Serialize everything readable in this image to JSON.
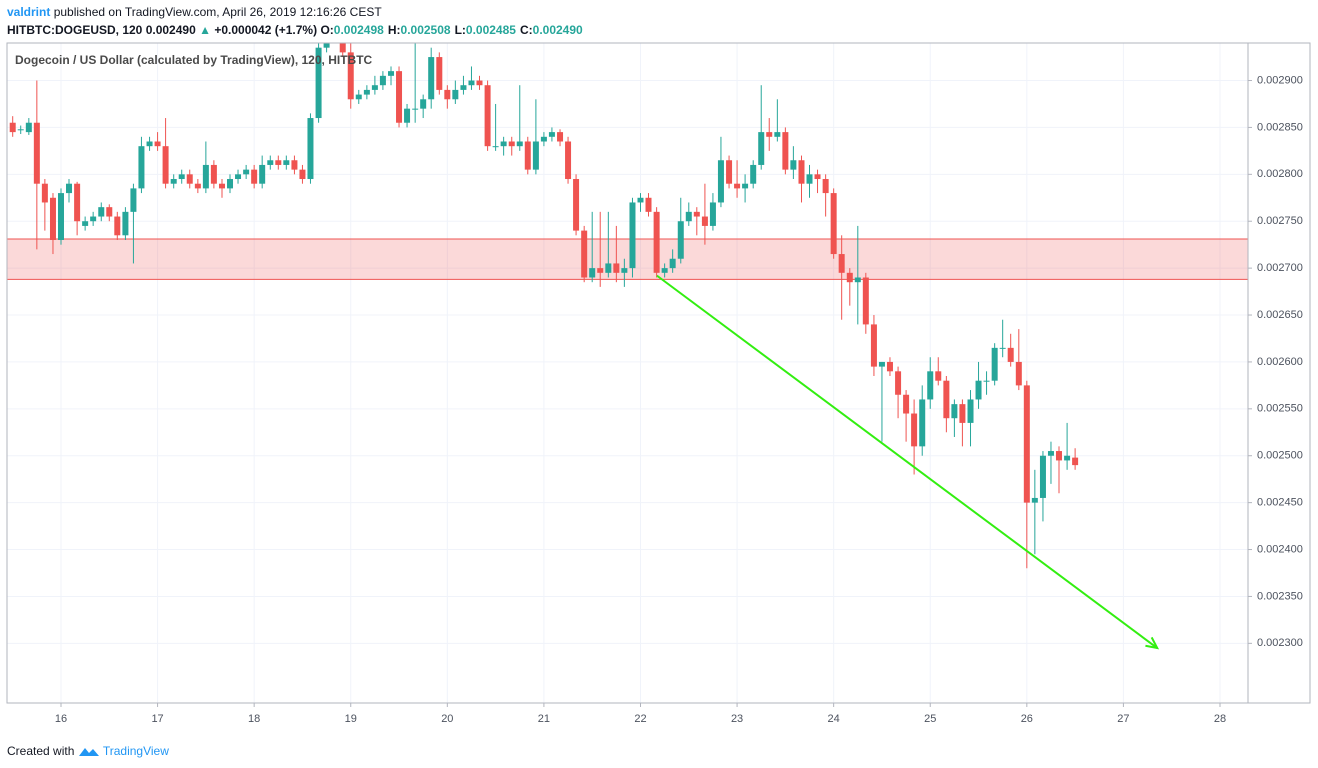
{
  "header": {
    "author": "valdrint",
    "published": "published on TradingView.com, April 26, 2019 12:16:26 CEST",
    "symbol": "HITBTC:DOGEUSD, 120",
    "last": "0.002490",
    "change": "+0.000042 (+1.7%)",
    "ohlc": [
      {
        "label": "O:",
        "value": "0.002498"
      },
      {
        "label": "H:",
        "value": "0.002508"
      },
      {
        "label": "L:",
        "value": "0.002485"
      },
      {
        "label": "C:",
        "value": "0.002490"
      }
    ]
  },
  "footer": {
    "prefix": "Created with",
    "brand": "TradingView"
  },
  "chart_data": {
    "type": "candlestick",
    "title": "Dogecoin / US Dollar (calculated by TradingView), 120, HITBTC",
    "up_color": "#26a69a",
    "down_color": "#ef5350",
    "grid": true,
    "xlim": [
      15.441,
      28.29
    ],
    "xticks": [
      16,
      17,
      18,
      19,
      20,
      21,
      22,
      23,
      24,
      25,
      26,
      27,
      28
    ],
    "ylim": [
      0.0022364,
      0.00294
    ],
    "yticks": [
      {
        "value": 0.0023,
        "label": "0.002300"
      },
      {
        "value": 0.00235,
        "label": "0.002350"
      },
      {
        "value": 0.0024,
        "label": "0.002400"
      },
      {
        "value": 0.00245,
        "label": "0.002450"
      },
      {
        "value": 0.0025,
        "label": "0.002500"
      },
      {
        "value": 0.00255,
        "label": "0.002550"
      },
      {
        "value": 0.0026,
        "label": "0.002600"
      },
      {
        "value": 0.00265,
        "label": "0.002650"
      },
      {
        "value": 0.0027,
        "label": "0.002700"
      },
      {
        "value": 0.00275,
        "label": "0.002750"
      },
      {
        "value": 0.0028,
        "label": "0.002800"
      },
      {
        "value": 0.00285,
        "label": "0.002850"
      },
      {
        "value": 0.0029,
        "label": "0.002900"
      }
    ],
    "zone": {
      "color": "#ef5350",
      "y": [
        0.002688,
        0.002731
      ]
    },
    "arrow": {
      "color": "#33ee11",
      "x": [
        22.17,
        27.35
      ],
      "y": [
        0.002692,
        0.002295
      ]
    },
    "x": [
      15.5,
      15.583,
      15.667,
      15.75,
      15.833,
      15.917,
      16,
      16.083,
      16.167,
      16.25,
      16.333,
      16.417,
      16.5,
      16.583,
      16.667,
      16.75,
      16.833,
      16.917,
      17,
      17.083,
      17.167,
      17.25,
      17.333,
      17.417,
      17.5,
      17.583,
      17.667,
      17.75,
      17.833,
      17.917,
      18,
      18.083,
      18.167,
      18.25,
      18.333,
      18.417,
      18.5,
      18.583,
      18.667,
      18.75,
      18.833,
      18.917,
      19,
      19.083,
      19.167,
      19.25,
      19.333,
      19.417,
      19.5,
      19.583,
      19.667,
      19.75,
      19.833,
      19.917,
      20,
      20.083,
      20.167,
      20.25,
      20.333,
      20.417,
      20.5,
      20.583,
      20.667,
      20.75,
      20.833,
      20.917,
      21,
      21.083,
      21.167,
      21.25,
      21.333,
      21.417,
      21.5,
      21.583,
      21.667,
      21.75,
      21.833,
      21.917,
      22,
      22.083,
      22.167,
      22.25,
      22.333,
      22.417,
      22.5,
      22.583,
      22.667,
      22.75,
      22.833,
      22.917,
      23,
      23.083,
      23.167,
      23.25,
      23.333,
      23.417,
      23.5,
      23.583,
      23.667,
      23.75,
      23.833,
      23.917,
      24,
      24.083,
      24.167,
      24.25,
      24.333,
      24.417,
      24.5,
      24.583,
      24.667,
      24.75,
      24.833,
      24.917,
      25,
      25.083,
      25.167,
      25.25,
      25.333,
      25.417,
      25.5,
      25.583,
      25.667,
      25.75,
      25.833,
      25.917,
      26,
      26.083,
      26.167,
      26.25,
      26.333,
      26.417,
      26.5
    ],
    "open": [
      0.002855,
      0.002848,
      0.002845,
      0.002855,
      0.00279,
      0.002775,
      0.00273,
      0.00278,
      0.00279,
      0.002745,
      0.00275,
      0.002755,
      0.002765,
      0.002755,
      0.002735,
      0.00276,
      0.002785,
      0.00283,
      0.002835,
      0.00283,
      0.00279,
      0.002795,
      0.0028,
      0.00279,
      0.002785,
      0.00281,
      0.00279,
      0.002785,
      0.002795,
      0.0028,
      0.002805,
      0.00279,
      0.00281,
      0.002815,
      0.00281,
      0.002815,
      0.002805,
      0.002795,
      0.00286,
      0.002935,
      0.002975,
      0.00296,
      0.00293,
      0.00288,
      0.002885,
      0.00289,
      0.002895,
      0.002905,
      0.00291,
      0.002855,
      0.00287,
      0.00287,
      0.00288,
      0.002925,
      0.00289,
      0.00288,
      0.00289,
      0.002895,
      0.0029,
      0.002895,
      0.00283,
      0.00283,
      0.002835,
      0.00283,
      0.002835,
      0.002805,
      0.002835,
      0.00284,
      0.002845,
      0.002835,
      0.002795,
      0.00274,
      0.00269,
      0.0027,
      0.002695,
      0.002705,
      0.002695,
      0.0027,
      0.00277,
      0.002775,
      0.00276,
      0.002695,
      0.0027,
      0.00271,
      0.00275,
      0.00276,
      0.002755,
      0.002745,
      0.00277,
      0.002815,
      0.00279,
      0.002785,
      0.00279,
      0.00281,
      0.002845,
      0.00284,
      0.002845,
      0.002805,
      0.002815,
      0.00279,
      0.0028,
      0.002795,
      0.00278,
      0.002715,
      0.002695,
      0.002685,
      0.00269,
      0.00264,
      0.002595,
      0.0026,
      0.00259,
      0.002565,
      0.002545,
      0.00251,
      0.00256,
      0.00259,
      0.00258,
      0.00254,
      0.002555,
      0.002535,
      0.00256,
      0.00258,
      0.00258,
      0.002615,
      0.002615,
      0.0026,
      0.002575,
      0.00245,
      0.002455,
      0.0025,
      0.002505,
      0.002495,
      0.002498
    ],
    "high": [
      0.002862,
      0.002852,
      0.00286,
      0.0029,
      0.002795,
      0.00278,
      0.002785,
      0.002795,
      0.002792,
      0.002755,
      0.00276,
      0.00277,
      0.002768,
      0.00276,
      0.002765,
      0.00279,
      0.00284,
      0.00284,
      0.002845,
      0.00286,
      0.0028,
      0.002805,
      0.002805,
      0.002795,
      0.002835,
      0.002815,
      0.002795,
      0.0028,
      0.002805,
      0.00281,
      0.00281,
      0.00282,
      0.00282,
      0.00282,
      0.00282,
      0.00282,
      0.00281,
      0.002865,
      0.00295,
      0.00299,
      0.003,
      0.00297,
      0.002945,
      0.00289,
      0.002895,
      0.002905,
      0.00291,
      0.002915,
      0.002915,
      0.002875,
      0.00294,
      0.002885,
      0.002935,
      0.00293,
      0.002895,
      0.0029,
      0.002905,
      0.002915,
      0.002905,
      0.0029,
      0.002875,
      0.00284,
      0.00284,
      0.002895,
      0.00284,
      0.00288,
      0.002845,
      0.00285,
      0.002848,
      0.00284,
      0.0028,
      0.002745,
      0.00276,
      0.00276,
      0.00276,
      0.002745,
      0.00271,
      0.002775,
      0.00278,
      0.00278,
      0.002765,
      0.002705,
      0.00272,
      0.002775,
      0.00277,
      0.002765,
      0.00279,
      0.00278,
      0.00284,
      0.00282,
      0.002815,
      0.0028,
      0.002815,
      0.002895,
      0.00286,
      0.00288,
      0.00285,
      0.00283,
      0.00282,
      0.00281,
      0.002805,
      0.0028,
      0.002785,
      0.002735,
      0.0027,
      0.002745,
      0.002695,
      0.00265,
      0.0026,
      0.002605,
      0.002595,
      0.00257,
      0.00256,
      0.002575,
      0.002605,
      0.002605,
      0.002585,
      0.00256,
      0.00256,
      0.00257,
      0.0026,
      0.00259,
      0.00262,
      0.002645,
      0.00263,
      0.002635,
      0.00258,
      0.002485,
      0.002505,
      0.002515,
      0.00251,
      0.002535,
      0.002508
    ],
    "low": [
      0.00284,
      0.002843,
      0.002842,
      0.00272,
      0.00274,
      0.002715,
      0.002725,
      0.00277,
      0.002735,
      0.00274,
      0.002745,
      0.00275,
      0.00275,
      0.00273,
      0.00273,
      0.002705,
      0.00278,
      0.002825,
      0.002825,
      0.002785,
      0.002785,
      0.00279,
      0.002785,
      0.00278,
      0.00278,
      0.002785,
      0.002775,
      0.00278,
      0.00279,
      0.002795,
      0.002785,
      0.002785,
      0.002805,
      0.002805,
      0.002805,
      0.0028,
      0.00279,
      0.00279,
      0.002855,
      0.00293,
      0.002955,
      0.002925,
      0.00287,
      0.002875,
      0.00288,
      0.002885,
      0.00289,
      0.002895,
      0.00285,
      0.00285,
      0.002855,
      0.00286,
      0.00287,
      0.002885,
      0.00287,
      0.002875,
      0.002885,
      0.00289,
      0.00289,
      0.002825,
      0.002825,
      0.00282,
      0.00282,
      0.002825,
      0.0028,
      0.0028,
      0.00283,
      0.002835,
      0.00283,
      0.00279,
      0.002735,
      0.002685,
      0.002685,
      0.00268,
      0.00269,
      0.002685,
      0.00268,
      0.00269,
      0.00276,
      0.002755,
      0.00269,
      0.00269,
      0.002695,
      0.002705,
      0.002745,
      0.002735,
      0.002725,
      0.00274,
      0.002765,
      0.002785,
      0.002775,
      0.00277,
      0.002785,
      0.002805,
      0.002825,
      0.002835,
      0.0028,
      0.002795,
      0.00277,
      0.002775,
      0.00278,
      0.002755,
      0.00271,
      0.002645,
      0.00266,
      0.00264,
      0.00263,
      0.002585,
      0.002515,
      0.002585,
      0.00254,
      0.002515,
      0.00248,
      0.0025,
      0.00255,
      0.002575,
      0.002525,
      0.00252,
      0.00251,
      0.00251,
      0.00255,
      0.002565,
      0.002575,
      0.002605,
      0.002595,
      0.00257,
      0.00238,
      0.002395,
      0.00243,
      0.00247,
      0.00246,
      0.002485,
      0.002485
    ],
    "close": [
      0.002845,
      0.002848,
      0.002855,
      0.00279,
      0.00277,
      0.00273,
      0.00278,
      0.00279,
      0.00275,
      0.00275,
      0.002755,
      0.002765,
      0.002755,
      0.002735,
      0.00276,
      0.002785,
      0.00283,
      0.002835,
      0.00283,
      0.00279,
      0.002795,
      0.0028,
      0.00279,
      0.002785,
      0.00281,
      0.00279,
      0.002785,
      0.002795,
      0.0028,
      0.002805,
      0.00279,
      0.00281,
      0.002815,
      0.00281,
      0.002815,
      0.002805,
      0.002795,
      0.00286,
      0.002935,
      0.002975,
      0.00296,
      0.00293,
      0.00288,
      0.002885,
      0.00289,
      0.002895,
      0.002905,
      0.00291,
      0.002855,
      0.00287,
      0.00287,
      0.00288,
      0.002925,
      0.00289,
      0.00288,
      0.00289,
      0.002895,
      0.0029,
      0.002895,
      0.00283,
      0.00283,
      0.002835,
      0.00283,
      0.002835,
      0.002805,
      0.002835,
      0.00284,
      0.002845,
      0.002835,
      0.002795,
      0.00274,
      0.00269,
      0.0027,
      0.002695,
      0.002705,
      0.002695,
      0.0027,
      0.00277,
      0.002775,
      0.00276,
      0.002695,
      0.0027,
      0.00271,
      0.00275,
      0.00276,
      0.002755,
      0.002745,
      0.00277,
      0.002815,
      0.00279,
      0.002785,
      0.00279,
      0.00281,
      0.002845,
      0.00284,
      0.002845,
      0.002805,
      0.002815,
      0.00279,
      0.0028,
      0.002795,
      0.00278,
      0.002715,
      0.002695,
      0.002685,
      0.00269,
      0.00264,
      0.002595,
      0.0026,
      0.00259,
      0.002565,
      0.002545,
      0.00251,
      0.00256,
      0.00259,
      0.00258,
      0.00254,
      0.002555,
      0.002535,
      0.00256,
      0.00258,
      0.00258,
      0.002615,
      0.002615,
      0.0026,
      0.002575,
      0.00245,
      0.002455,
      0.0025,
      0.002505,
      0.002495,
      0.0025,
      0.00249
    ]
  }
}
